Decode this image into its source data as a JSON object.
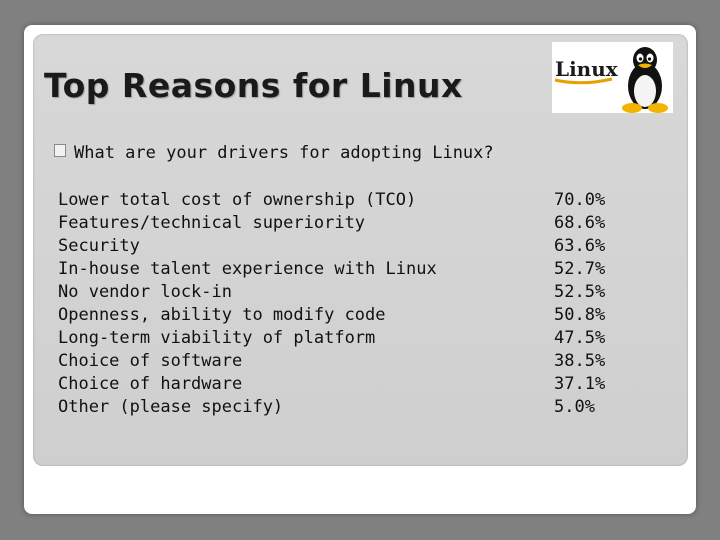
{
  "slide": {
    "title": "Top Reasons for Linux",
    "question": "What are your drivers for adopting Linux?",
    "logo": {
      "text": "Linux",
      "icon": "tux-penguin-icon"
    }
  },
  "reasons": [
    {
      "label": "Lower total cost of ownership (TCO)",
      "percent": "70.0%"
    },
    {
      "label": "Features/technical superiority",
      "percent": "68.6%"
    },
    {
      "label": "Security",
      "percent": "63.6%"
    },
    {
      "label": "In-house talent experience with Linux",
      "percent": "52.7%"
    },
    {
      "label": "No vendor lock-in",
      "percent": "52.5%"
    },
    {
      "label": "Openness, ability to modify code",
      "percent": "50.8%"
    },
    {
      "label": "Long-term viability of platform",
      "percent": "47.5%"
    },
    {
      "label": "Choice of software",
      "percent": "38.5%"
    },
    {
      "label": "Choice of hardware",
      "percent": "37.1%"
    },
    {
      "label": "Other (please specify)",
      "percent": "5.0%"
    }
  ]
}
